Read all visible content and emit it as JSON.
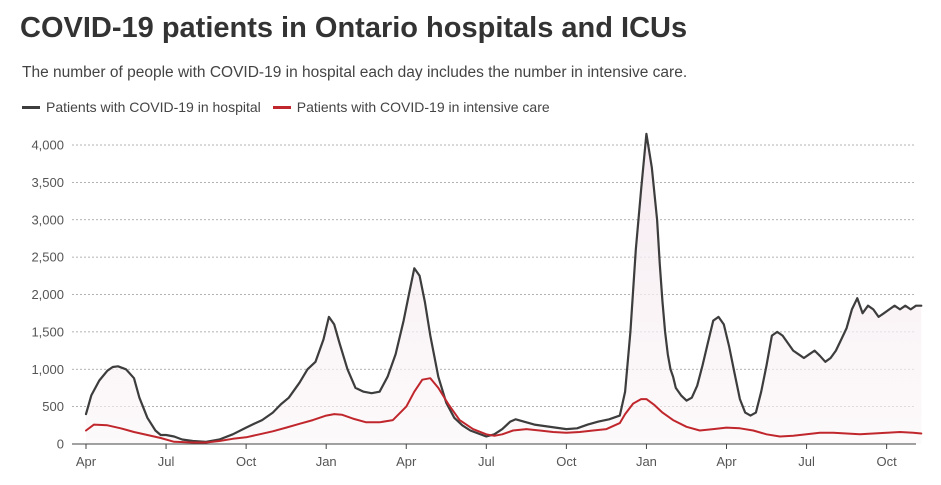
{
  "header": {
    "title": "COVID-19 patients in Ontario hospitals and ICUs",
    "subtitle": "The number of people with COVID-19 in hospital each day includes the number in intensive care."
  },
  "chart_data": {
    "type": "line",
    "title": "COVID-19 patients in Ontario hospitals and ICUs",
    "subtitle": "The number of people with COVID-19 in hospital each day includes the number in intensive care.",
    "xlabel": "",
    "ylabel": "",
    "x_units": "months since Apr 1, 2020",
    "xlim": [
      0,
      31.4
    ],
    "ylim": [
      0,
      4000
    ],
    "grid": true,
    "legend_position": "top-left",
    "x_tick_values": [
      0,
      3,
      6,
      9,
      12,
      15,
      18,
      21,
      24,
      27,
      30
    ],
    "x_tick_labels": [
      "Apr",
      "Jul",
      "Oct",
      "Jan",
      "Apr",
      "Jul",
      "Oct",
      "Jan",
      "Apr",
      "Jul",
      "Oct"
    ],
    "y_ticks": [
      0,
      500,
      1000,
      1500,
      2000,
      2500,
      3000,
      3500,
      4000
    ],
    "y_tick_labels": [
      "0",
      "500",
      "1,000",
      "1,500",
      "2,000",
      "2,500",
      "3,000",
      "3,500",
      "4,000"
    ],
    "series": [
      {
        "name": "Patients with COVID-19 in hospital",
        "color": "#3d3d3d",
        "x": [
          0,
          0.2,
          0.5,
          0.8,
          1.0,
          1.2,
          1.5,
          1.8,
          2.0,
          2.3,
          2.6,
          2.8,
          3.0,
          3.3,
          3.6,
          4.0,
          4.5,
          5.0,
          5.5,
          6.0,
          6.3,
          6.6,
          7.0,
          7.3,
          7.6,
          8.0,
          8.3,
          8.6,
          8.9,
          9.1,
          9.3,
          9.5,
          9.8,
          10.1,
          10.4,
          10.7,
          11.0,
          11.3,
          11.6,
          11.9,
          12.1,
          12.3,
          12.5,
          12.7,
          12.9,
          13.2,
          13.5,
          13.8,
          14.1,
          14.4,
          14.7,
          15.0,
          15.3,
          15.6,
          15.9,
          16.1,
          16.4,
          16.8,
          17.2,
          17.6,
          18.0,
          18.4,
          18.8,
          19.2,
          19.6,
          20.0,
          20.2,
          20.4,
          20.6,
          20.8,
          21.0,
          21.2,
          21.4,
          21.5,
          21.6,
          21.7,
          21.8,
          21.9,
          22.0,
          22.1,
          22.3,
          22.5,
          22.7,
          22.9,
          23.1,
          23.3,
          23.5,
          23.7,
          23.9,
          24.1,
          24.3,
          24.5,
          24.7,
          24.9,
          25.1,
          25.3,
          25.5,
          25.7,
          25.9,
          26.1,
          26.3,
          26.5,
          26.7,
          26.9,
          27.1,
          27.3,
          27.5,
          27.7,
          27.9,
          28.1,
          28.3,
          28.5,
          28.7,
          28.9,
          29.1,
          29.3,
          29.5,
          29.7,
          29.9,
          30.1,
          30.3,
          30.5,
          30.7,
          30.9,
          31.1,
          31.3
        ],
        "values": [
          400,
          650,
          850,
          980,
          1030,
          1040,
          1000,
          880,
          620,
          350,
          180,
          120,
          120,
          100,
          60,
          40,
          30,
          60,
          130,
          220,
          270,
          320,
          420,
          530,
          620,
          820,
          1000,
          1100,
          1400,
          1700,
          1600,
          1350,
          1000,
          750,
          700,
          680,
          700,
          900,
          1200,
          1650,
          2000,
          2350,
          2250,
          1900,
          1450,
          900,
          550,
          350,
          250,
          180,
          140,
          100,
          130,
          200,
          300,
          330,
          300,
          260,
          240,
          220,
          200,
          210,
          260,
          300,
          330,
          380,
          700,
          1500,
          2600,
          3400,
          4150,
          3700,
          3000,
          2400,
          1900,
          1500,
          1200,
          1000,
          900,
          750,
          650,
          580,
          620,
          780,
          1050,
          1350,
          1650,
          1700,
          1600,
          1300,
          950,
          600,
          420,
          380,
          420,
          700,
          1050,
          1450,
          1500,
          1450,
          1350,
          1250,
          1200,
          1150,
          1200,
          1250,
          1180,
          1100,
          1150,
          1250,
          1400,
          1550,
          1800,
          1950,
          1750,
          1850,
          1800,
          1700,
          1750,
          1800,
          1850,
          1800,
          1850,
          1800,
          1850,
          1850
        ]
      },
      {
        "name": "Patients with COVID-19 in intensive care",
        "color": "#c0272d",
        "x": [
          0,
          0.3,
          0.8,
          1.3,
          1.8,
          2.3,
          2.8,
          3.3,
          4.0,
          4.5,
          5.0,
          5.5,
          6.0,
          6.5,
          7.0,
          7.5,
          8.0,
          8.5,
          9.0,
          9.3,
          9.6,
          10.0,
          10.5,
          11.0,
          11.5,
          12.0,
          12.3,
          12.6,
          12.9,
          13.2,
          13.6,
          14.0,
          14.5,
          15.0,
          15.3,
          15.6,
          16.0,
          16.5,
          17.0,
          17.5,
          18.0,
          18.5,
          19.0,
          19.5,
          20.0,
          20.2,
          20.5,
          20.8,
          21.0,
          21.3,
          21.6,
          22.0,
          22.5,
          23.0,
          23.5,
          24.0,
          24.5,
          25.0,
          25.5,
          26.0,
          26.5,
          27.0,
          27.5,
          28.0,
          28.5,
          29.0,
          29.5,
          30.0,
          30.5,
          31.0,
          31.3
        ],
        "values": [
          180,
          260,
          250,
          210,
          160,
          120,
          80,
          30,
          20,
          20,
          40,
          70,
          90,
          130,
          170,
          220,
          270,
          320,
          380,
          400,
          390,
          340,
          290,
          290,
          320,
          500,
          700,
          860,
          880,
          750,
          520,
          320,
          200,
          130,
          110,
          130,
          180,
          200,
          180,
          160,
          150,
          160,
          180,
          200,
          280,
          400,
          540,
          600,
          600,
          520,
          420,
          320,
          230,
          180,
          200,
          220,
          210,
          180,
          130,
          100,
          110,
          130,
          150,
          150,
          140,
          130,
          140,
          150,
          160,
          150,
          140
        ]
      }
    ]
  }
}
